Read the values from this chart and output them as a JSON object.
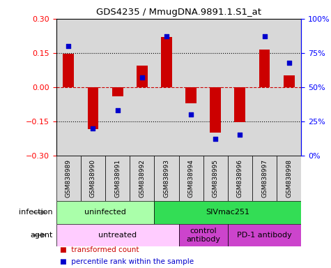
{
  "title": "GDS4235 / MmugDNA.9891.1.S1_at",
  "samples": [
    "GSM838989",
    "GSM838990",
    "GSM838991",
    "GSM838992",
    "GSM838993",
    "GSM838994",
    "GSM838995",
    "GSM838996",
    "GSM838997",
    "GSM838998"
  ],
  "transformed_counts": [
    0.145,
    -0.185,
    -0.04,
    0.095,
    0.22,
    -0.07,
    -0.2,
    -0.155,
    0.165,
    0.05
  ],
  "percentile_ranks": [
    80,
    20,
    33,
    57,
    87,
    30,
    12,
    15,
    87,
    68
  ],
  "ylim_left": [
    -0.3,
    0.3
  ],
  "yticks_left": [
    -0.3,
    -0.15,
    0,
    0.15,
    0.3
  ],
  "yticks_right": [
    0,
    25,
    50,
    75,
    100
  ],
  "bar_color": "#cc0000",
  "dot_color": "#0000cc",
  "zero_line_color": "#cc0000",
  "infection_spans": [
    {
      "text": "uninfected",
      "start": 0,
      "end": 3,
      "color": "#aaffaa"
    },
    {
      "text": "SIVmac251",
      "start": 4,
      "end": 9,
      "color": "#33dd55"
    }
  ],
  "agent_spans": [
    {
      "text": "untreated",
      "start": 0,
      "end": 4,
      "color": "#ffccff"
    },
    {
      "text": "control\nantibody",
      "start": 5,
      "end": 6,
      "color": "#cc44cc"
    },
    {
      "text": "PD-1 antibody",
      "start": 7,
      "end": 9,
      "color": "#cc44cc"
    }
  ]
}
